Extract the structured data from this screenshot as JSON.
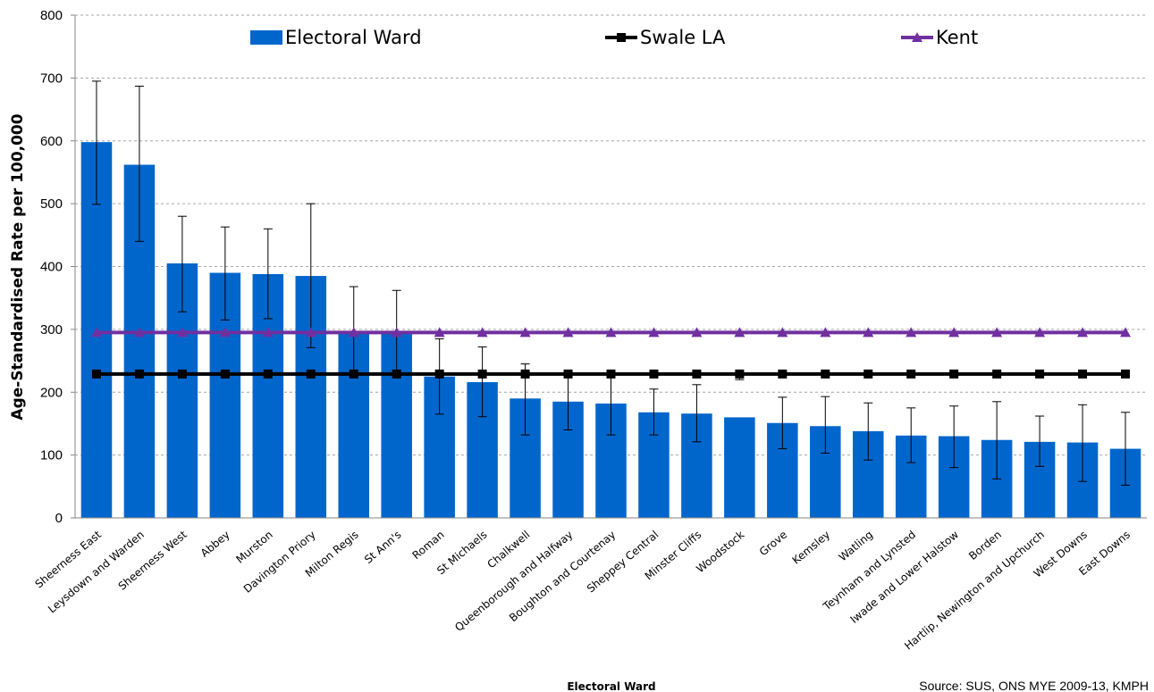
{
  "chart_data": {
    "type": "bar",
    "ylabel": "Age-Standardised Rate per 100,000",
    "xlabel": "Electoral Ward",
    "ylim": [
      0,
      800
    ],
    "yticks": [
      0,
      100,
      200,
      300,
      400,
      500,
      600,
      700,
      800
    ],
    "grid": true,
    "legend_position": "top",
    "source": "Source: SUS, ONS MYE 2009-13, KMPH",
    "categories": [
      "Sheerness East",
      "Leysdown and Warden",
      "Sheerness West",
      "Abbey",
      "Murston",
      "Davington Priory",
      "Milton Regis",
      "St Ann's",
      "Roman",
      "St Michaels",
      "Chalkwell",
      "Queenborough and Halfway",
      "Boughton and Courtenay",
      "Sheppey Central",
      "Minster Cliffs",
      "Woodstock",
      "Grove",
      "Kemsley",
      "Watling",
      "Teynham and Lynsted",
      "Iwade and Lower Halstow",
      "Borden",
      "Hartlip, Newington and Upchurch",
      "West Downs",
      "East Downs"
    ],
    "series": [
      {
        "name": "Electoral Ward",
        "kind": "bar",
        "color": "#0066cc",
        "values": [
          598,
          562,
          405,
          390,
          388,
          385,
          297,
          297,
          225,
          216,
          190,
          185,
          182,
          168,
          166,
          160,
          151,
          146,
          138,
          131,
          130,
          124,
          121,
          120,
          110
        ],
        "error_low": [
          499,
          440,
          328,
          315,
          317,
          271,
          225,
          235,
          165,
          161,
          132,
          140,
          132,
          132,
          121,
          220,
          110,
          103,
          92,
          88,
          80,
          62,
          82,
          58,
          52
        ],
        "error_high": [
          695,
          687,
          480,
          463,
          460,
          500,
          368,
          362,
          285,
          272,
          245,
          232,
          226,
          205,
          212,
          230,
          192,
          193,
          183,
          175,
          178,
          185,
          162,
          180,
          168
        ]
      },
      {
        "name": "Swale LA",
        "kind": "line",
        "color": "#000000",
        "marker": "square",
        "values": [
          229,
          229,
          229,
          229,
          229,
          229,
          229,
          229,
          229,
          229,
          229,
          229,
          229,
          229,
          229,
          229,
          229,
          229,
          229,
          229,
          229,
          229,
          229,
          229,
          229
        ]
      },
      {
        "name": "Kent",
        "kind": "line",
        "color": "#7030a0",
        "marker": "triangle",
        "values": [
          295,
          295,
          295,
          295,
          295,
          295,
          295,
          295,
          295,
          295,
          295,
          295,
          295,
          295,
          295,
          295,
          295,
          295,
          295,
          295,
          295,
          295,
          295,
          295,
          295
        ]
      }
    ]
  }
}
